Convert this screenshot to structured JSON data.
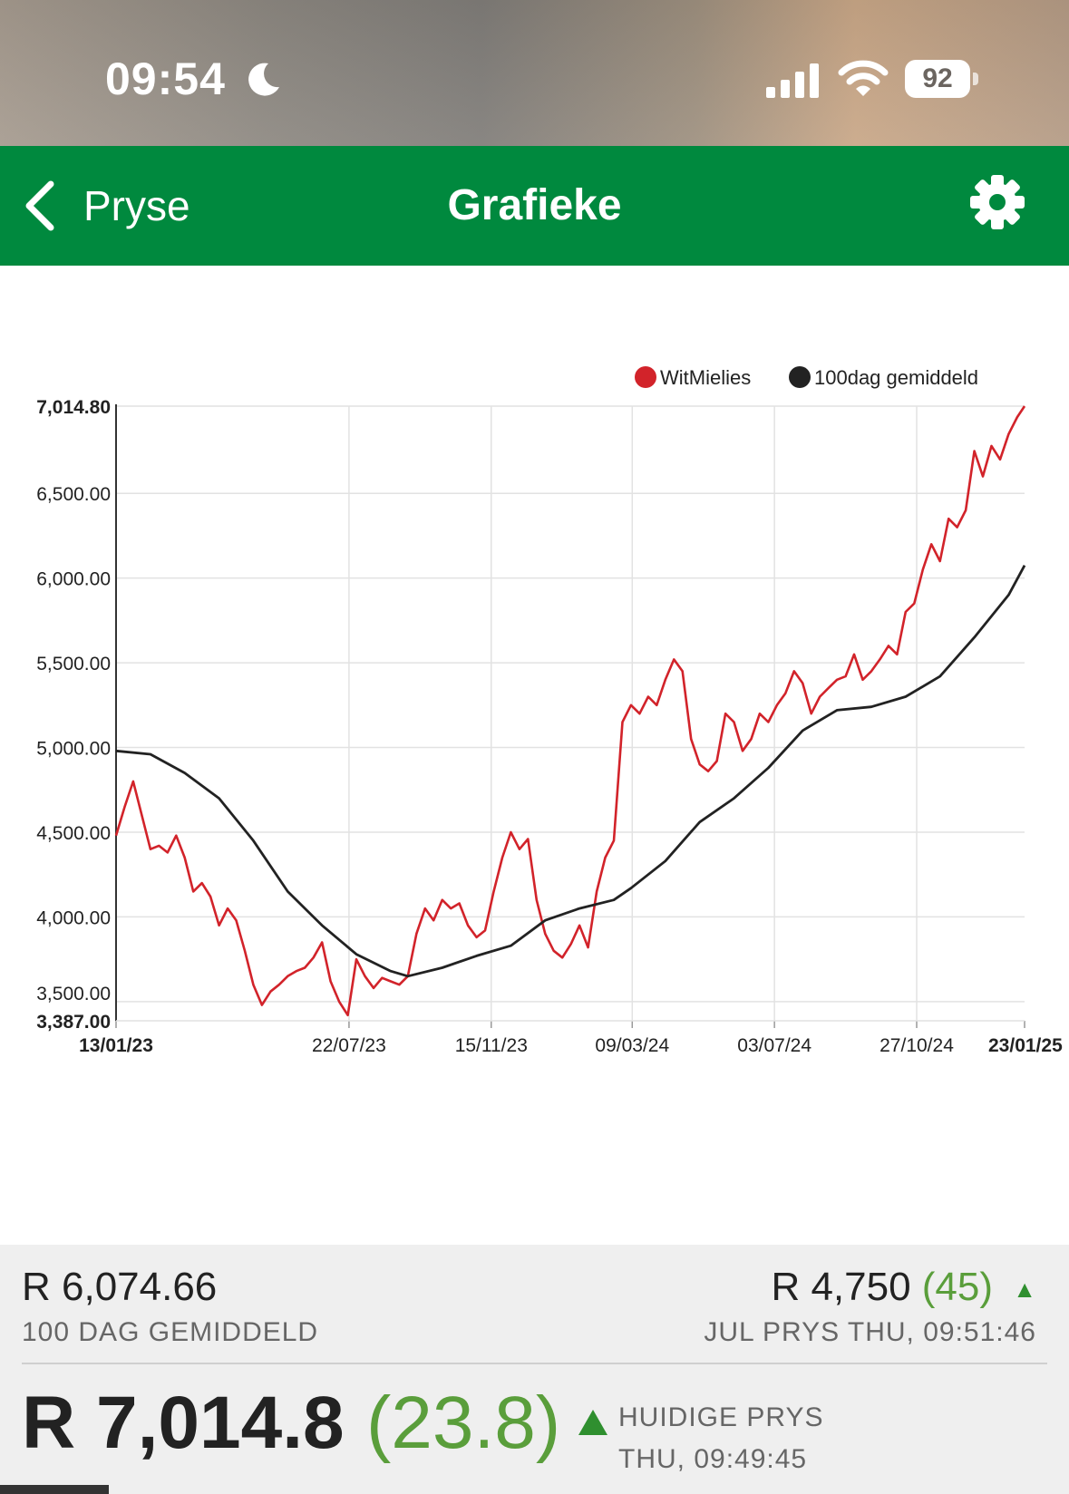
{
  "status_bar": {
    "time": "09:54",
    "battery": "92",
    "icons": [
      "moon-icon",
      "signal-icon",
      "wifi-icon",
      "battery-icon"
    ]
  },
  "nav": {
    "back_label": "Pryse",
    "title": "Grafieke",
    "back_icon": "chevron-left-icon",
    "settings_icon": "gear-icon"
  },
  "colors": {
    "nav_green": "#00893e",
    "price_series": "#d2232a",
    "average_series": "#222222",
    "positive_change": "#5a9e3b"
  },
  "chart_data": {
    "type": "line",
    "legend_position": "top-right",
    "grid": true,
    "ylim": [
      3387.0,
      7014.8
    ],
    "yticks": [
      "7,014.80",
      "6,500.00",
      "6,000.00",
      "5,500.00",
      "5,000.00",
      "4,500.00",
      "4,000.00",
      "3,500.00",
      "3,387.00"
    ],
    "xlim": [
      "2023-01-13",
      "2025-01-23"
    ],
    "xticks": [
      "13/01/23",
      "22/07/23",
      "15/11/23",
      "09/03/24",
      "03/07/24",
      "27/10/24",
      "23/01/25"
    ],
    "series": [
      {
        "name": "WitMielies",
        "color": "#d2232a",
        "points": [
          [
            "2023-01-13",
            4480
          ],
          [
            "2023-01-20",
            4650
          ],
          [
            "2023-01-27",
            4800
          ],
          [
            "2023-02-03",
            4600
          ],
          [
            "2023-02-10",
            4400
          ],
          [
            "2023-02-17",
            4420
          ],
          [
            "2023-02-24",
            4380
          ],
          [
            "2023-03-03",
            4480
          ],
          [
            "2023-03-10",
            4350
          ],
          [
            "2023-03-17",
            4150
          ],
          [
            "2023-03-24",
            4200
          ],
          [
            "2023-03-31",
            4120
          ],
          [
            "2023-04-07",
            3950
          ],
          [
            "2023-04-14",
            4050
          ],
          [
            "2023-04-21",
            3980
          ],
          [
            "2023-04-28",
            3800
          ],
          [
            "2023-05-05",
            3600
          ],
          [
            "2023-05-12",
            3480
          ],
          [
            "2023-05-19",
            3560
          ],
          [
            "2023-05-26",
            3600
          ],
          [
            "2023-06-02",
            3650
          ],
          [
            "2023-06-09",
            3680
          ],
          [
            "2023-06-16",
            3700
          ],
          [
            "2023-06-23",
            3760
          ],
          [
            "2023-06-30",
            3850
          ],
          [
            "2023-07-07",
            3620
          ],
          [
            "2023-07-14",
            3500
          ],
          [
            "2023-07-21",
            3420
          ],
          [
            "2023-07-28",
            3750
          ],
          [
            "2023-08-04",
            3650
          ],
          [
            "2023-08-11",
            3580
          ],
          [
            "2023-08-18",
            3640
          ],
          [
            "2023-08-25",
            3620
          ],
          [
            "2023-09-01",
            3600
          ],
          [
            "2023-09-08",
            3650
          ],
          [
            "2023-09-15",
            3900
          ],
          [
            "2023-09-22",
            4050
          ],
          [
            "2023-09-29",
            3980
          ],
          [
            "2023-10-06",
            4100
          ],
          [
            "2023-10-13",
            4050
          ],
          [
            "2023-10-20",
            4080
          ],
          [
            "2023-10-27",
            3950
          ],
          [
            "2023-11-03",
            3880
          ],
          [
            "2023-11-10",
            3920
          ],
          [
            "2023-11-17",
            4150
          ],
          [
            "2023-11-24",
            4350
          ],
          [
            "2023-12-01",
            4500
          ],
          [
            "2023-12-08",
            4400
          ],
          [
            "2023-12-15",
            4460
          ],
          [
            "2023-12-22",
            4100
          ],
          [
            "2023-12-29",
            3900
          ],
          [
            "2024-01-05",
            3800
          ],
          [
            "2024-01-12",
            3760
          ],
          [
            "2024-01-19",
            3840
          ],
          [
            "2024-01-26",
            3950
          ],
          [
            "2024-02-02",
            3820
          ],
          [
            "2024-02-09",
            4150
          ],
          [
            "2024-02-16",
            4350
          ],
          [
            "2024-02-23",
            4450
          ],
          [
            "2024-03-01",
            5150
          ],
          [
            "2024-03-08",
            5250
          ],
          [
            "2024-03-15",
            5200
          ],
          [
            "2024-03-22",
            5300
          ],
          [
            "2024-03-29",
            5250
          ],
          [
            "2024-04-05",
            5400
          ],
          [
            "2024-04-12",
            5520
          ],
          [
            "2024-04-19",
            5450
          ],
          [
            "2024-04-26",
            5050
          ],
          [
            "2024-05-03",
            4900
          ],
          [
            "2024-05-10",
            4860
          ],
          [
            "2024-05-17",
            4920
          ],
          [
            "2024-05-24",
            5200
          ],
          [
            "2024-05-31",
            5150
          ],
          [
            "2024-06-07",
            4980
          ],
          [
            "2024-06-14",
            5050
          ],
          [
            "2024-06-21",
            5200
          ],
          [
            "2024-06-28",
            5150
          ],
          [
            "2024-07-05",
            5250
          ],
          [
            "2024-07-12",
            5320
          ],
          [
            "2024-07-19",
            5450
          ],
          [
            "2024-07-26",
            5380
          ],
          [
            "2024-08-02",
            5200
          ],
          [
            "2024-08-09",
            5300
          ],
          [
            "2024-08-16",
            5350
          ],
          [
            "2024-08-23",
            5400
          ],
          [
            "2024-08-30",
            5420
          ],
          [
            "2024-09-06",
            5550
          ],
          [
            "2024-09-13",
            5400
          ],
          [
            "2024-09-20",
            5450
          ],
          [
            "2024-09-27",
            5520
          ],
          [
            "2024-10-04",
            5600
          ],
          [
            "2024-10-11",
            5550
          ],
          [
            "2024-10-18",
            5800
          ],
          [
            "2024-10-25",
            5850
          ],
          [
            "2024-11-01",
            6050
          ],
          [
            "2024-11-08",
            6200
          ],
          [
            "2024-11-15",
            6100
          ],
          [
            "2024-11-22",
            6350
          ],
          [
            "2024-11-29",
            6300
          ],
          [
            "2024-12-06",
            6400
          ],
          [
            "2024-12-13",
            6750
          ],
          [
            "2024-12-20",
            6600
          ],
          [
            "2024-12-27",
            6780
          ],
          [
            "2025-01-03",
            6700
          ],
          [
            "2025-01-10",
            6850
          ],
          [
            "2025-01-17",
            6950
          ],
          [
            "2025-01-23",
            7014.8
          ]
        ]
      },
      {
        "name": "100dag gemiddeld",
        "color": "#222222",
        "points": [
          [
            "2023-01-13",
            4980
          ],
          [
            "2023-02-10",
            4960
          ],
          [
            "2023-03-10",
            4850
          ],
          [
            "2023-04-07",
            4700
          ],
          [
            "2023-05-05",
            4450
          ],
          [
            "2023-06-02",
            4150
          ],
          [
            "2023-06-30",
            3950
          ],
          [
            "2023-07-28",
            3780
          ],
          [
            "2023-08-25",
            3680
          ],
          [
            "2023-09-08",
            3650
          ],
          [
            "2023-10-06",
            3700
          ],
          [
            "2023-11-03",
            3770
          ],
          [
            "2023-12-01",
            3830
          ],
          [
            "2023-12-29",
            3980
          ],
          [
            "2024-01-26",
            4050
          ],
          [
            "2024-02-23",
            4100
          ],
          [
            "2024-03-08",
            4170
          ],
          [
            "2024-04-05",
            4330
          ],
          [
            "2024-05-03",
            4560
          ],
          [
            "2024-05-31",
            4700
          ],
          [
            "2024-06-28",
            4880
          ],
          [
            "2024-07-26",
            5100
          ],
          [
            "2024-08-23",
            5220
          ],
          [
            "2024-09-20",
            5240
          ],
          [
            "2024-10-18",
            5300
          ],
          [
            "2024-11-15",
            5420
          ],
          [
            "2024-12-13",
            5650
          ],
          [
            "2025-01-10",
            5900
          ],
          [
            "2025-01-23",
            6074.66
          ]
        ]
      }
    ]
  },
  "footer": {
    "moving_average_value": "R 6,074.66",
    "moving_average_label": "100 DAG GEMIDDELD",
    "jul_price": "R 4,750",
    "jul_change": "(45)",
    "jul_label": "JUL PRYS THU, 09:51:46",
    "current_price": "R 7,014.8",
    "current_change": "(23.8)",
    "current_label_line1": "HUIDIGE PRYS",
    "current_label_line2": "THU, 09:49:45"
  }
}
